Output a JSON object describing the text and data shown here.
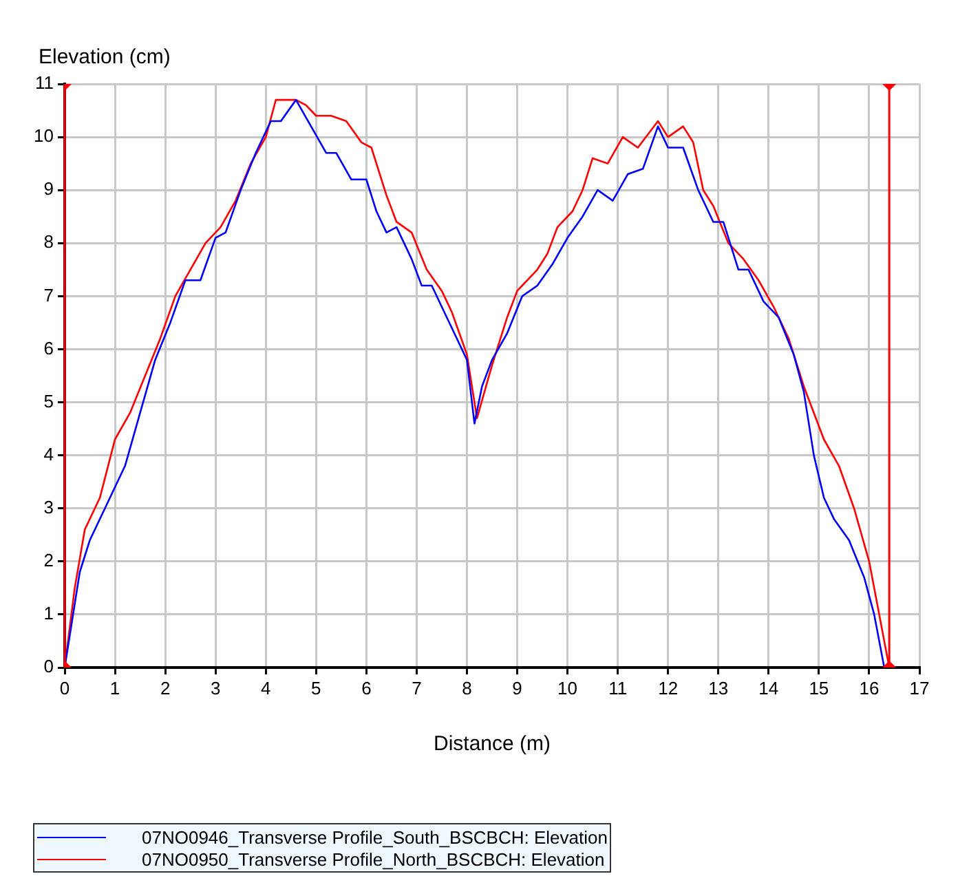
{
  "chart_data": {
    "type": "line",
    "xlabel": "Distance (m)",
    "ylabel": "Elevation (cm)",
    "xlim": [
      0,
      17
    ],
    "xticks": [
      0,
      1,
      2,
      3,
      4,
      5,
      6,
      7,
      8,
      9,
      10,
      11,
      12,
      13,
      14,
      15,
      16,
      17
    ],
    "ylim": [
      0,
      11
    ],
    "yticks": [
      0,
      1,
      2,
      3,
      4,
      5,
      6,
      7,
      8,
      9,
      10,
      11
    ],
    "grid": true,
    "legend": "bottom left",
    "marker": "none",
    "line_style": "solid",
    "ref_lines": [
      {
        "axis": "x",
        "value": 0,
        "color": "#ff0000"
      },
      {
        "axis": "x",
        "value": 16.4,
        "color": "#ff0000"
      }
    ],
    "series": [
      {
        "type": "scatter",
        "color": "#ff0000",
        "marker": "diamond",
        "x": [
          0,
          0,
          16.4,
          16.4
        ],
        "values": [
          0,
          11,
          11,
          0
        ]
      },
      {
        "name": "07NO0946_Transverse Profile_South_BSCBCH: Elevation",
        "color": "#0000ff",
        "x": [
          0,
          0.1,
          0.3,
          0.5,
          0.8,
          1.2,
          1.5,
          1.8,
          2.1,
          2.4,
          2.7,
          3.0,
          3.2,
          3.5,
          3.8,
          4.1,
          4.3,
          4.6,
          4.9,
          5.2,
          5.4,
          5.7,
          6.0,
          6.2,
          6.4,
          6.6,
          6.9,
          7.1,
          7.3,
          7.6,
          7.8,
          8.0,
          8.15,
          8.3,
          8.5,
          8.8,
          9.1,
          9.4,
          9.7,
          10.0,
          10.3,
          10.6,
          10.9,
          11.2,
          11.5,
          11.8,
          12.0,
          12.3,
          12.6,
          12.9,
          13.1,
          13.4,
          13.6,
          13.9,
          14.2,
          14.5,
          14.7,
          14.9,
          15.1,
          15.3,
          15.6,
          15.9,
          16.1,
          16.3
        ],
        "values": [
          0,
          0.6,
          1.8,
          2.4,
          3.0,
          3.8,
          4.8,
          5.8,
          6.5,
          7.3,
          7.3,
          8.1,
          8.2,
          9.0,
          9.7,
          10.3,
          10.3,
          10.7,
          10.2,
          9.7,
          9.7,
          9.2,
          9.2,
          8.6,
          8.2,
          8.3,
          7.7,
          7.2,
          7.2,
          6.6,
          6.2,
          5.8,
          4.6,
          5.3,
          5.8,
          6.3,
          7.0,
          7.2,
          7.6,
          8.1,
          8.5,
          9.0,
          8.8,
          9.3,
          9.4,
          10.2,
          9.8,
          9.8,
          9.0,
          8.4,
          8.4,
          7.5,
          7.5,
          6.9,
          6.6,
          5.9,
          5.2,
          4.0,
          3.2,
          2.8,
          2.4,
          1.7,
          1.0,
          0
        ]
      },
      {
        "name": "07NO0950_Transverse Profile_North_BSCBCH: Elevation",
        "color": "#ff0000",
        "x": [
          0,
          0.2,
          0.4,
          0.7,
          1.0,
          1.3,
          1.6,
          1.9,
          2.2,
          2.5,
          2.8,
          3.1,
          3.4,
          3.7,
          4.0,
          4.2,
          4.6,
          4.8,
          5.0,
          5.3,
          5.6,
          5.9,
          6.1,
          6.4,
          6.6,
          6.9,
          7.2,
          7.5,
          7.7,
          8.0,
          8.2,
          8.5,
          8.8,
          9.0,
          9.4,
          9.6,
          9.8,
          10.1,
          10.3,
          10.5,
          10.8,
          11.1,
          11.4,
          11.8,
          12.0,
          12.3,
          12.5,
          12.7,
          12.9,
          13.2,
          13.5,
          13.8,
          14.1,
          14.4,
          14.7,
          14.9,
          15.1,
          15.4,
          15.7,
          16.0,
          16.2,
          16.4
        ],
        "values": [
          0,
          1.5,
          2.6,
          3.2,
          4.3,
          4.8,
          5.5,
          6.2,
          7.0,
          7.5,
          8.0,
          8.3,
          8.8,
          9.5,
          10.0,
          10.7,
          10.7,
          10.6,
          10.4,
          10.4,
          10.3,
          9.9,
          9.8,
          8.9,
          8.4,
          8.2,
          7.5,
          7.1,
          6.7,
          5.9,
          4.7,
          5.7,
          6.6,
          7.1,
          7.5,
          7.8,
          8.3,
          8.6,
          9.0,
          9.6,
          9.5,
          10.0,
          9.8,
          10.3,
          10.0,
          10.2,
          9.9,
          9.0,
          8.7,
          8.0,
          7.7,
          7.3,
          6.8,
          6.2,
          5.3,
          4.8,
          4.3,
          3.8,
          3.0,
          2.0,
          1.0,
          0
        ]
      }
    ]
  }
}
